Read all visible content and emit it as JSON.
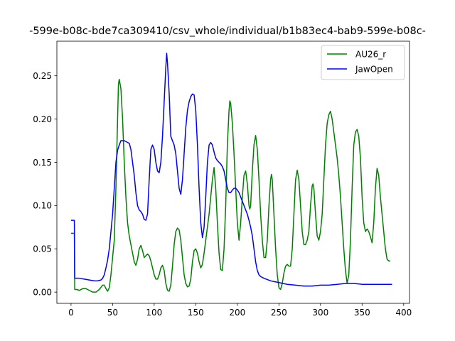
{
  "chart_data": {
    "type": "line",
    "title": "-599e-b08c-bde7ca309410/csv_whole/individual/b1b83ec4-bab9-599e-b08c-",
    "xlabel": "",
    "ylabel": "",
    "xlim": [
      -17,
      407
    ],
    "ylim": [
      -0.013,
      0.29
    ],
    "xticks": [
      0,
      50,
      100,
      150,
      200,
      250,
      300,
      350,
      400
    ],
    "yticks": [
      0.0,
      0.05,
      0.1,
      0.15,
      0.2,
      0.25
    ],
    "ytick_labels": [
      "0.00",
      "0.05",
      "0.10",
      "0.15",
      "0.20",
      "0.25"
    ],
    "grid": false,
    "legend_position": "top-right",
    "series": [
      {
        "name": "AU26_r",
        "color": "#008000",
        "points": [
          [
            0,
            0.068
          ],
          [
            4,
            0.068
          ],
          [
            4.5,
            0.003
          ],
          [
            7,
            0.003
          ],
          [
            10,
            0.002
          ],
          [
            14,
            0.004
          ],
          [
            18,
            0.004
          ],
          [
            22,
            0.002
          ],
          [
            26,
            0.0
          ],
          [
            30,
            0.0
          ],
          [
            34,
            0.003
          ],
          [
            38,
            0.008
          ],
          [
            40,
            0.008
          ],
          [
            42,
            0.004
          ],
          [
            44,
            0.001
          ],
          [
            46,
            0.005
          ],
          [
            48,
            0.02
          ],
          [
            50,
            0.04
          ],
          [
            52,
            0.06
          ],
          [
            54,
            0.12
          ],
          [
            56,
            0.2
          ],
          [
            57,
            0.24
          ],
          [
            58,
            0.246
          ],
          [
            60,
            0.235
          ],
          [
            62,
            0.2
          ],
          [
            64,
            0.15
          ],
          [
            66,
            0.11
          ],
          [
            68,
            0.08
          ],
          [
            70,
            0.065
          ],
          [
            72,
            0.055
          ],
          [
            74,
            0.045
          ],
          [
            76,
            0.035
          ],
          [
            78,
            0.031
          ],
          [
            80,
            0.038
          ],
          [
            82,
            0.05
          ],
          [
            84,
            0.054
          ],
          [
            86,
            0.048
          ],
          [
            88,
            0.04
          ],
          [
            90,
            0.042
          ],
          [
            92,
            0.044
          ],
          [
            94,
            0.042
          ],
          [
            96,
            0.036
          ],
          [
            98,
            0.028
          ],
          [
            100,
            0.02
          ],
          [
            102,
            0.015
          ],
          [
            104,
            0.015
          ],
          [
            106,
            0.02
          ],
          [
            108,
            0.028
          ],
          [
            110,
            0.031
          ],
          [
            112,
            0.025
          ],
          [
            114,
            0.01
          ],
          [
            116,
            0.002
          ],
          [
            118,
            0.001
          ],
          [
            120,
            0.008
          ],
          [
            122,
            0.03
          ],
          [
            124,
            0.055
          ],
          [
            126,
            0.07
          ],
          [
            128,
            0.074
          ],
          [
            130,
            0.072
          ],
          [
            132,
            0.06
          ],
          [
            134,
            0.04
          ],
          [
            136,
            0.02
          ],
          [
            138,
            0.01
          ],
          [
            140,
            0.006
          ],
          [
            142,
            0.007
          ],
          [
            144,
            0.015
          ],
          [
            146,
            0.035
          ],
          [
            148,
            0.048
          ],
          [
            150,
            0.05
          ],
          [
            152,
            0.045
          ],
          [
            154,
            0.035
          ],
          [
            156,
            0.028
          ],
          [
            158,
            0.032
          ],
          [
            160,
            0.045
          ],
          [
            162,
            0.06
          ],
          [
            164,
            0.075
          ],
          [
            166,
            0.09
          ],
          [
            168,
            0.11
          ],
          [
            170,
            0.13
          ],
          [
            172,
            0.144
          ],
          [
            174,
            0.12
          ],
          [
            176,
            0.08
          ],
          [
            178,
            0.045
          ],
          [
            180,
            0.026
          ],
          [
            182,
            0.025
          ],
          [
            184,
            0.05
          ],
          [
            186,
            0.1
          ],
          [
            188,
            0.17
          ],
          [
            190,
            0.21
          ],
          [
            191,
            0.221
          ],
          [
            192,
            0.218
          ],
          [
            194,
            0.195
          ],
          [
            196,
            0.16
          ],
          [
            198,
            0.12
          ],
          [
            200,
            0.08
          ],
          [
            202,
            0.06
          ],
          [
            204,
            0.08
          ],
          [
            206,
            0.11
          ],
          [
            208,
            0.135
          ],
          [
            210,
            0.14
          ],
          [
            212,
            0.125
          ],
          [
            214,
            0.1
          ],
          [
            215,
            0.096
          ],
          [
            216,
            0.1
          ],
          [
            218,
            0.14
          ],
          [
            220,
            0.17
          ],
          [
            222,
            0.181
          ],
          [
            224,
            0.165
          ],
          [
            226,
            0.13
          ],
          [
            228,
            0.09
          ],
          [
            230,
            0.06
          ],
          [
            232,
            0.04
          ],
          [
            234,
            0.04
          ],
          [
            236,
            0.06
          ],
          [
            238,
            0.1
          ],
          [
            240,
            0.13
          ],
          [
            241,
            0.136
          ],
          [
            242,
            0.13
          ],
          [
            244,
            0.09
          ],
          [
            246,
            0.05
          ],
          [
            248,
            0.02
          ],
          [
            250,
            0.005
          ],
          [
            252,
            0.003
          ],
          [
            254,
            0.01
          ],
          [
            256,
            0.022
          ],
          [
            258,
            0.03
          ],
          [
            260,
            0.032
          ],
          [
            262,
            0.03
          ],
          [
            264,
            0.03
          ],
          [
            266,
            0.05
          ],
          [
            268,
            0.09
          ],
          [
            270,
            0.13
          ],
          [
            272,
            0.141
          ],
          [
            274,
            0.13
          ],
          [
            276,
            0.1
          ],
          [
            278,
            0.07
          ],
          [
            280,
            0.055
          ],
          [
            282,
            0.055
          ],
          [
            284,
            0.06
          ],
          [
            286,
            0.07
          ],
          [
            288,
            0.1
          ],
          [
            290,
            0.123
          ],
          [
            291,
            0.125
          ],
          [
            292,
            0.12
          ],
          [
            294,
            0.09
          ],
          [
            296,
            0.065
          ],
          [
            298,
            0.06
          ],
          [
            300,
            0.07
          ],
          [
            302,
            0.09
          ],
          [
            304,
            0.13
          ],
          [
            306,
            0.17
          ],
          [
            308,
            0.195
          ],
          [
            310,
            0.205
          ],
          [
            312,
            0.209
          ],
          [
            314,
            0.2
          ],
          [
            316,
            0.185
          ],
          [
            318,
            0.17
          ],
          [
            320,
            0.155
          ],
          [
            322,
            0.135
          ],
          [
            324,
            0.11
          ],
          [
            326,
            0.08
          ],
          [
            328,
            0.05
          ],
          [
            330,
            0.025
          ],
          [
            332,
            0.01
          ],
          [
            334,
            0.02
          ],
          [
            336,
            0.06
          ],
          [
            338,
            0.12
          ],
          [
            340,
            0.17
          ],
          [
            342,
            0.185
          ],
          [
            344,
            0.188
          ],
          [
            346,
            0.18
          ],
          [
            348,
            0.155
          ],
          [
            350,
            0.11
          ],
          [
            352,
            0.08
          ],
          [
            354,
            0.07
          ],
          [
            356,
            0.073
          ],
          [
            358,
            0.07
          ],
          [
            360,
            0.064
          ],
          [
            362,
            0.057
          ],
          [
            364,
            0.08
          ],
          [
            366,
            0.12
          ],
          [
            368,
            0.143
          ],
          [
            370,
            0.135
          ],
          [
            372,
            0.11
          ],
          [
            374,
            0.09
          ],
          [
            376,
            0.07
          ],
          [
            378,
            0.05
          ],
          [
            380,
            0.038
          ],
          [
            382,
            0.036
          ],
          [
            384,
            0.036
          ]
        ]
      },
      {
        "name": "JawOpen",
        "color": "#0000ff",
        "points": [
          [
            0,
            0.083
          ],
          [
            4,
            0.083
          ],
          [
            4.5,
            0.016
          ],
          [
            10,
            0.016
          ],
          [
            16,
            0.015
          ],
          [
            22,
            0.014
          ],
          [
            28,
            0.013
          ],
          [
            32,
            0.013
          ],
          [
            36,
            0.014
          ],
          [
            38,
            0.016
          ],
          [
            40,
            0.02
          ],
          [
            42,
            0.028
          ],
          [
            44,
            0.037
          ],
          [
            46,
            0.05
          ],
          [
            48,
            0.07
          ],
          [
            50,
            0.09
          ],
          [
            52,
            0.12
          ],
          [
            54,
            0.15
          ],
          [
            56,
            0.164
          ],
          [
            58,
            0.17
          ],
          [
            60,
            0.175
          ],
          [
            62,
            0.175
          ],
          [
            64,
            0.175
          ],
          [
            66,
            0.174
          ],
          [
            68,
            0.173
          ],
          [
            70,
            0.172
          ],
          [
            72,
            0.165
          ],
          [
            74,
            0.15
          ],
          [
            76,
            0.135
          ],
          [
            78,
            0.115
          ],
          [
            80,
            0.1
          ],
          [
            82,
            0.095
          ],
          [
            84,
            0.093
          ],
          [
            86,
            0.09
          ],
          [
            88,
            0.084
          ],
          [
            90,
            0.083
          ],
          [
            92,
            0.09
          ],
          [
            94,
            0.13
          ],
          [
            96,
            0.165
          ],
          [
            98,
            0.17
          ],
          [
            100,
            0.165
          ],
          [
            102,
            0.15
          ],
          [
            104,
            0.14
          ],
          [
            106,
            0.138
          ],
          [
            108,
            0.15
          ],
          [
            110,
            0.18
          ],
          [
            112,
            0.22
          ],
          [
            114,
            0.26
          ],
          [
            115,
            0.276
          ],
          [
            116,
            0.265
          ],
          [
            118,
            0.23
          ],
          [
            120,
            0.18
          ],
          [
            122,
            0.175
          ],
          [
            124,
            0.17
          ],
          [
            126,
            0.16
          ],
          [
            128,
            0.14
          ],
          [
            130,
            0.12
          ],
          [
            132,
            0.113
          ],
          [
            134,
            0.13
          ],
          [
            136,
            0.16
          ],
          [
            138,
            0.19
          ],
          [
            140,
            0.21
          ],
          [
            142,
            0.22
          ],
          [
            144,
            0.226
          ],
          [
            146,
            0.229
          ],
          [
            148,
            0.228
          ],
          [
            150,
            0.21
          ],
          [
            152,
            0.17
          ],
          [
            154,
            0.12
          ],
          [
            156,
            0.08
          ],
          [
            158,
            0.063
          ],
          [
            160,
            0.075
          ],
          [
            162,
            0.11
          ],
          [
            164,
            0.15
          ],
          [
            166,
            0.17
          ],
          [
            168,
            0.173
          ],
          [
            170,
            0.17
          ],
          [
            172,
            0.162
          ],
          [
            174,
            0.155
          ],
          [
            176,
            0.152
          ],
          [
            178,
            0.15
          ],
          [
            180,
            0.148
          ],
          [
            182,
            0.145
          ],
          [
            184,
            0.14
          ],
          [
            186,
            0.13
          ],
          [
            188,
            0.12
          ],
          [
            190,
            0.115
          ],
          [
            192,
            0.115
          ],
          [
            194,
            0.118
          ],
          [
            196,
            0.12
          ],
          [
            198,
            0.12
          ],
          [
            200,
            0.118
          ],
          [
            202,
            0.115
          ],
          [
            204,
            0.11
          ],
          [
            206,
            0.105
          ],
          [
            208,
            0.1
          ],
          [
            210,
            0.095
          ],
          [
            212,
            0.09
          ],
          [
            214,
            0.083
          ],
          [
            216,
            0.075
          ],
          [
            218,
            0.065
          ],
          [
            220,
            0.05
          ],
          [
            222,
            0.035
          ],
          [
            224,
            0.025
          ],
          [
            226,
            0.02
          ],
          [
            228,
            0.018
          ],
          [
            232,
            0.016
          ],
          [
            240,
            0.013
          ],
          [
            250,
            0.011
          ],
          [
            260,
            0.009
          ],
          [
            270,
            0.008
          ],
          [
            280,
            0.007
          ],
          [
            290,
            0.007
          ],
          [
            300,
            0.008
          ],
          [
            310,
            0.008
          ],
          [
            320,
            0.009
          ],
          [
            330,
            0.01
          ],
          [
            340,
            0.01
          ],
          [
            350,
            0.009
          ],
          [
            360,
            0.009
          ],
          [
            370,
            0.009
          ],
          [
            380,
            0.009
          ],
          [
            386,
            0.009
          ]
        ]
      }
    ]
  }
}
